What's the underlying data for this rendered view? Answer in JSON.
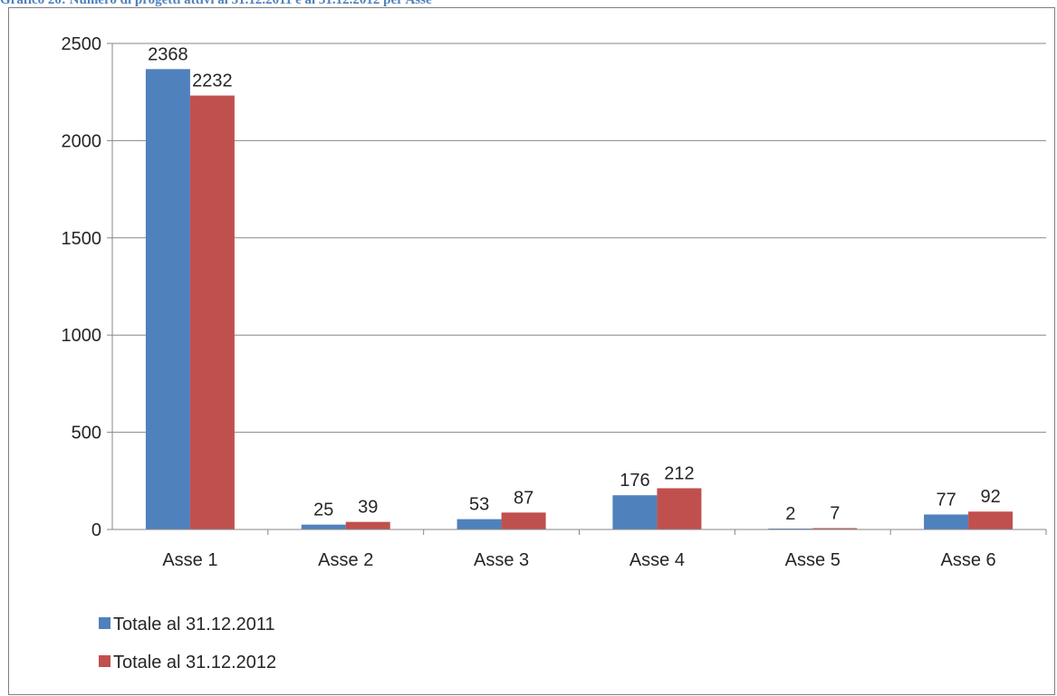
{
  "caption": "Grafico 20: Numero di progetti attivi al 31.12.2011 e al 31.12.2012 per Asse",
  "colors": {
    "series_2011": "#4f81bd",
    "series_2012": "#c0504d",
    "grid": "#878787",
    "axis": "#878787",
    "caption": "#4f81bd"
  },
  "chart_data": {
    "type": "bar",
    "categories": [
      "Asse 1",
      "Asse 2",
      "Asse 3",
      "Asse 4",
      "Asse 5",
      "Asse 6"
    ],
    "series": [
      {
        "name": "Totale al 31.12.2011",
        "values": [
          2368,
          25,
          53,
          176,
          2,
          77
        ]
      },
      {
        "name": "Totale al 31.12.2012",
        "values": [
          2232,
          39,
          87,
          212,
          7,
          92
        ]
      }
    ],
    "ylim": [
      0,
      2500
    ],
    "yticks": [
      "0",
      "500",
      "1000",
      "1500",
      "2000",
      "2500"
    ],
    "grid": true,
    "legend_position": "bottom-left",
    "data_labels": true
  }
}
